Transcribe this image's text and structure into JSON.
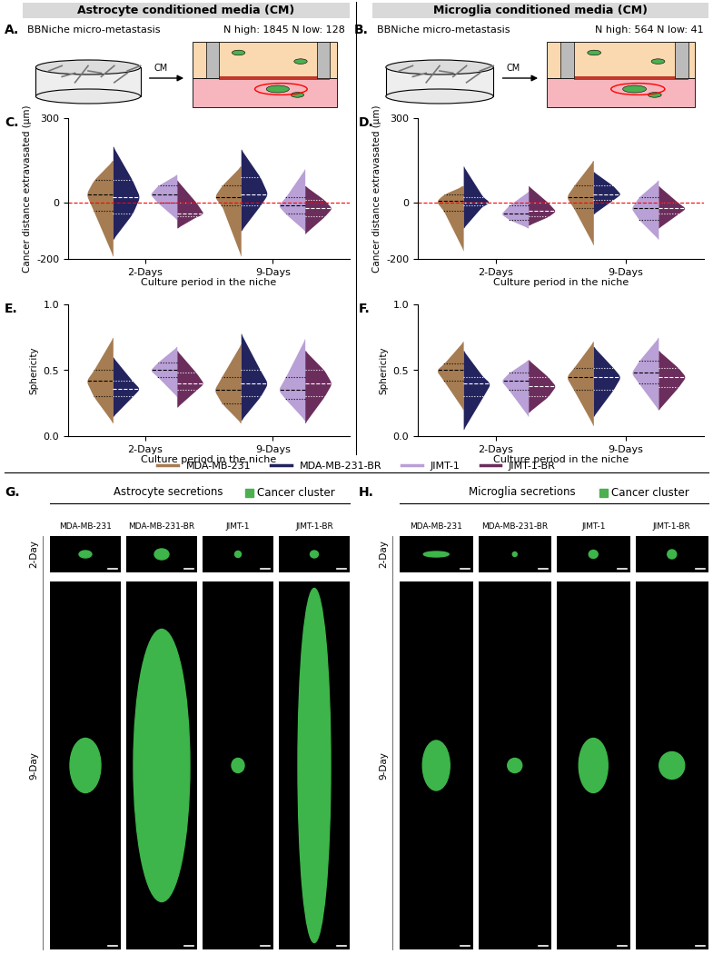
{
  "chart_data": [
    {
      "panel": "C.",
      "type": "violin",
      "ylabel": "Cancer distance extravasated (µm)",
      "xlabel": "Culture period in the niche",
      "categories": [
        "2-Days",
        "9-Days"
      ],
      "ylim": [
        -200,
        300
      ],
      "yticks": [
        -200,
        0,
        300
      ],
      "reference_line": 0,
      "legend": "upper center",
      "series": [
        {
          "name": "MDA-MB-231",
          "color": "#a67c52",
          "values": [
            {
              "min": -190,
              "q1": -30,
              "median": 30,
              "q3": 80,
              "max": 150
            },
            {
              "min": -190,
              "q1": -10,
              "median": 20,
              "q3": 60,
              "max": 130
            }
          ]
        },
        {
          "name": "MDA-MB-231-BR",
          "color": "#23235e",
          "values": [
            {
              "min": -130,
              "q1": -40,
              "median": 20,
              "q3": 80,
              "max": 200
            },
            {
              "min": -100,
              "q1": -10,
              "median": 30,
              "q3": 90,
              "max": 190
            }
          ]
        },
        {
          "name": "JIMT-1",
          "color": "#b9a0d6",
          "values": [
            {
              "min": -60,
              "q1": 0,
              "median": 30,
              "q3": 60,
              "max": 100
            },
            {
              "min": -100,
              "q1": -40,
              "median": -10,
              "q3": 20,
              "max": 120
            }
          ]
        },
        {
          "name": "JIMT-1-BR",
          "color": "#6b2d5c",
          "values": [
            {
              "min": -90,
              "q1": -50,
              "median": -40,
              "q3": 0,
              "max": 80
            },
            {
              "min": -110,
              "q1": -50,
              "median": -20,
              "q3": 10,
              "max": 60
            }
          ]
        }
      ]
    },
    {
      "panel": "D.",
      "type": "violin",
      "ylabel": "Cancer distance extravasated (µm)",
      "xlabel": "Culture period in the niche",
      "categories": [
        "2-Days",
        "9-Days"
      ],
      "ylim": [
        -200,
        300
      ],
      "yticks": [
        -200,
        0,
        300
      ],
      "reference_line": 0,
      "series": [
        {
          "name": "MDA-MB-231",
          "color": "#a67c52",
          "values": [
            {
              "min": -170,
              "q1": -30,
              "median": 5,
              "q3": 30,
              "max": 60
            },
            {
              "min": -150,
              "q1": -20,
              "median": 20,
              "q3": 60,
              "max": 150
            }
          ]
        },
        {
          "name": "MDA-MB-231-BR",
          "color": "#23235e",
          "values": [
            {
              "min": -90,
              "q1": -10,
              "median": 0,
              "q3": 20,
              "max": 130
            },
            {
              "min": -40,
              "q1": 10,
              "median": 30,
              "q3": 60,
              "max": 110
            }
          ]
        },
        {
          "name": "JIMT-1",
          "color": "#b9a0d6",
          "values": [
            {
              "min": -90,
              "q1": -60,
              "median": -40,
              "q3": -10,
              "max": 40
            },
            {
              "min": -130,
              "q1": -60,
              "median": -20,
              "q3": 20,
              "max": 80
            }
          ]
        },
        {
          "name": "JIMT-1-BR",
          "color": "#6b2d5c",
          "values": [
            {
              "min": -80,
              "q1": -50,
              "median": -30,
              "q3": 0,
              "max": 60
            },
            {
              "min": -90,
              "q1": -40,
              "median": -20,
              "q3": 0,
              "max": 60
            }
          ]
        }
      ]
    },
    {
      "panel": "E.",
      "type": "violin",
      "ylabel": "Sphericity",
      "xlabel": "Culture period in the niche",
      "categories": [
        "2-Days",
        "9-Days"
      ],
      "ylim": [
        0,
        1
      ],
      "yticks": [
        {
          "value": 0,
          "label": "0.0"
        },
        {
          "value": 0.5,
          "label": "0.5"
        },
        {
          "value": 1,
          "label": "1.0"
        }
      ],
      "series": [
        {
          "name": "MDA-MB-231",
          "color": "#a67c52",
          "values": [
            {
              "min": 0.1,
              "q1": 0.3,
              "median": 0.42,
              "q3": 0.5,
              "max": 0.75
            },
            {
              "min": 0.1,
              "q1": 0.25,
              "median": 0.35,
              "q3": 0.45,
              "max": 0.7
            }
          ]
        },
        {
          "name": "MDA-MB-231-BR",
          "color": "#23235e",
          "values": [
            {
              "min": 0.15,
              "q1": 0.3,
              "median": 0.36,
              "q3": 0.42,
              "max": 0.6
            },
            {
              "min": 0.12,
              "q1": 0.3,
              "median": 0.4,
              "q3": 0.5,
              "max": 0.78
            }
          ]
        },
        {
          "name": "JIMT-1",
          "color": "#b9a0d6",
          "values": [
            {
              "min": 0.3,
              "q1": 0.45,
              "median": 0.5,
              "q3": 0.56,
              "max": 0.68
            },
            {
              "min": 0.12,
              "q1": 0.28,
              "median": 0.35,
              "q3": 0.45,
              "max": 0.74
            }
          ]
        },
        {
          "name": "JIMT-1-BR",
          "color": "#6b2d5c",
          "values": [
            {
              "min": 0.22,
              "q1": 0.35,
              "median": 0.4,
              "q3": 0.48,
              "max": 0.65
            },
            {
              "min": 0.1,
              "q1": 0.3,
              "median": 0.4,
              "q3": 0.5,
              "max": 0.65
            }
          ]
        }
      ]
    },
    {
      "panel": "F.",
      "type": "violin",
      "ylabel": "Sphericity",
      "xlabel": "Culture period in the niche",
      "categories": [
        "2-Days",
        "9-Days"
      ],
      "ylim": [
        0,
        1
      ],
      "yticks": [
        {
          "value": 0,
          "label": "0.0"
        },
        {
          "value": 0.5,
          "label": "0.5"
        },
        {
          "value": 1,
          "label": "1.0"
        }
      ],
      "series": [
        {
          "name": "MDA-MB-231",
          "color": "#a67c52",
          "values": [
            {
              "min": 0.2,
              "q1": 0.42,
              "median": 0.5,
              "q3": 0.55,
              "max": 0.72
            },
            {
              "min": 0.08,
              "q1": 0.35,
              "median": 0.45,
              "q3": 0.52,
              "max": 0.72
            }
          ]
        },
        {
          "name": "MDA-MB-231-BR",
          "color": "#23235e",
          "values": [
            {
              "min": 0.05,
              "q1": 0.3,
              "median": 0.4,
              "q3": 0.45,
              "max": 0.65
            },
            {
              "min": 0.15,
              "q1": 0.35,
              "median": 0.45,
              "q3": 0.52,
              "max": 0.68
            }
          ]
        },
        {
          "name": "JIMT-1",
          "color": "#b9a0d6",
          "values": [
            {
              "min": 0.15,
              "q1": 0.35,
              "median": 0.42,
              "q3": 0.48,
              "max": 0.58
            },
            {
              "min": 0.2,
              "q1": 0.4,
              "median": 0.48,
              "q3": 0.57,
              "max": 0.75
            }
          ]
        },
        {
          "name": "JIMT-1-BR",
          "color": "#6b2d5c",
          "values": [
            {
              "min": 0.18,
              "q1": 0.3,
              "median": 0.38,
              "q3": 0.45,
              "max": 0.58
            },
            {
              "min": 0.2,
              "q1": 0.37,
              "median": 0.45,
              "q3": 0.52,
              "max": 0.65
            }
          ]
        }
      ]
    }
  ],
  "schematics": [
    {
      "panel": "A.",
      "title": "Astrocyte conditioned media (CM)",
      "subtitle": "BBNiche micro-metastasis",
      "counts": "N high: 1845 N low: 128",
      "arrow_label": "CM"
    },
    {
      "panel": "B.",
      "title": "Microglia conditioned media (CM)",
      "subtitle": "BBNiche micro-metastasis",
      "counts": "N high: 564 N low: 41",
      "arrow_label": "CM"
    }
  ],
  "image_panels": [
    {
      "panel": "G.",
      "title": "Astrocyte secretions",
      "key": "Cancer cluster",
      "columns": [
        "MDA-MB-231",
        "MDA-MB-231-BR",
        "JIMT-1",
        "JIMT-1-BR"
      ],
      "rows": [
        "2-Day",
        "9-Day"
      ]
    },
    {
      "panel": "H.",
      "title": "Microglia secretions",
      "key": "Cancer cluster",
      "columns": [
        "MDA-MB-231",
        "MDA-MB-231-BR",
        "JIMT-1",
        "JIMT-1-BR"
      ],
      "rows": [
        "2-Day",
        "9-Day"
      ]
    }
  ]
}
